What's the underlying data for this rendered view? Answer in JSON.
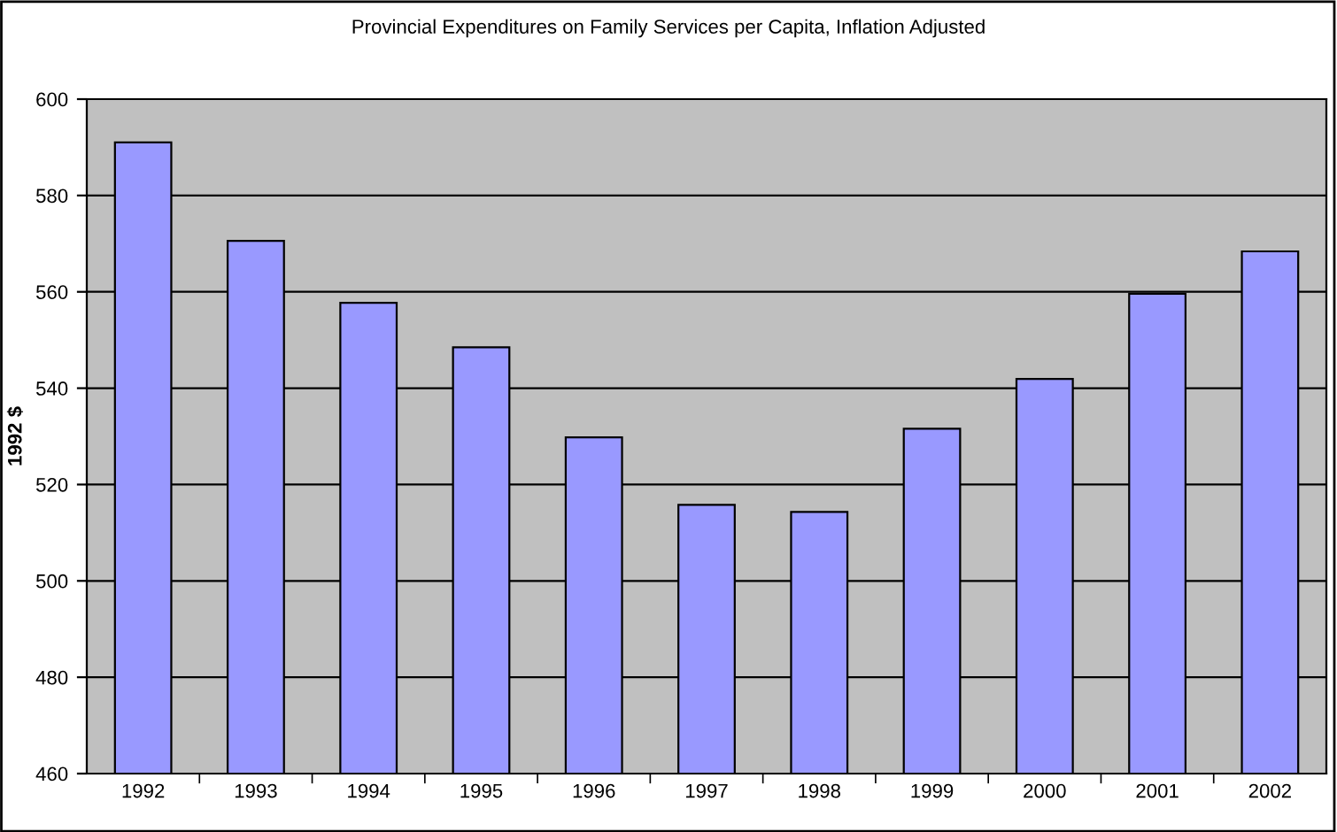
{
  "chart_data": {
    "type": "bar",
    "title": "Provincial Expenditures on Family Services per Capita, Inflation Adjusted",
    "ylabel": "1992 $",
    "categories": [
      "1992",
      "1993",
      "1994",
      "1995",
      "1996",
      "1997",
      "1998",
      "1999",
      "2000",
      "2001",
      "2002"
    ],
    "values": [
      591,
      570.6,
      557.7,
      548.5,
      529.8,
      515.8,
      514.3,
      531.6,
      541.9,
      559.6,
      568.4
    ],
    "color": "#9999ff",
    "ylim": [
      460,
      600
    ],
    "yticks": [
      460,
      480,
      500,
      520,
      540,
      560,
      580,
      600
    ],
    "grid": "y"
  }
}
